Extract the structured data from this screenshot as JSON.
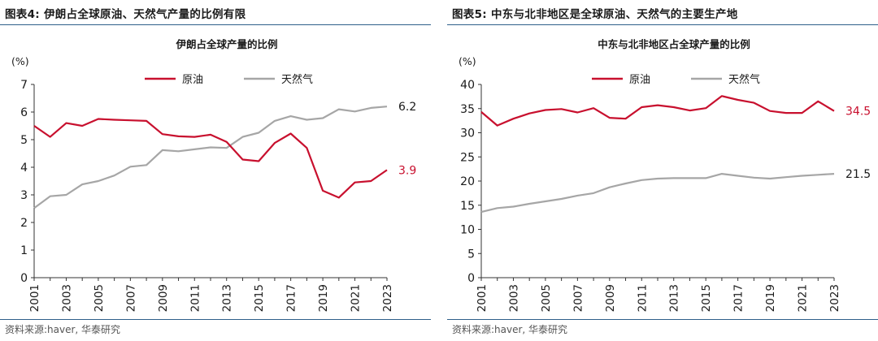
{
  "panels": [
    {
      "figure_title": "图表4:  伊朗占全球原油、天然气产量的比例有限",
      "source": "资料来源:haver, 华泰研究"
    },
    {
      "figure_title": "图表5:  中东与北非地区是全球原油、天然气的主要生产地",
      "source": "资料来源:haver, 华泰研究"
    }
  ],
  "colors": {
    "oil": "#c8102e",
    "gas": "#a6a6a6",
    "rule": "#2e5f8a"
  },
  "chart_data": [
    {
      "type": "line",
      "title": "伊朗占全球产量的比例",
      "ylabel": "(%)",
      "xlabel": "",
      "ylim": [
        0,
        7
      ],
      "yticks": [
        0,
        1,
        2,
        3,
        4,
        5,
        6,
        7
      ],
      "x": [
        2001,
        2002,
        2003,
        2004,
        2005,
        2006,
        2007,
        2008,
        2009,
        2010,
        2011,
        2012,
        2013,
        2014,
        2015,
        2016,
        2017,
        2018,
        2019,
        2020,
        2021,
        2022,
        2023
      ],
      "xticks": [
        "2001",
        "2003",
        "2005",
        "2007",
        "2009",
        "2011",
        "2013",
        "2015",
        "2017",
        "2019",
        "2021",
        "2023"
      ],
      "legend_position": "top-center",
      "grid": false,
      "series": [
        {
          "name": "原油",
          "color": "#c8102e",
          "end_label": "3.9",
          "values": [
            5.5,
            5.1,
            5.6,
            5.5,
            5.75,
            5.72,
            5.7,
            5.68,
            5.2,
            5.12,
            5.1,
            5.18,
            4.92,
            4.28,
            4.22,
            4.88,
            5.22,
            4.7,
            3.15,
            2.9,
            3.45,
            3.5,
            3.9
          ]
        },
        {
          "name": "天然气",
          "color": "#a6a6a6",
          "end_label": "6.2",
          "values": [
            2.52,
            2.95,
            3.0,
            3.38,
            3.5,
            3.7,
            4.02,
            4.08,
            4.62,
            4.58,
            4.65,
            4.72,
            4.7,
            5.1,
            5.25,
            5.68,
            5.85,
            5.72,
            5.78,
            6.1,
            6.02,
            6.15,
            6.2
          ]
        }
      ]
    },
    {
      "type": "line",
      "title": "中东与北非地区占全球产量的比例",
      "ylabel": "(%)",
      "xlabel": "",
      "ylim": [
        0,
        40
      ],
      "yticks": [
        0,
        5,
        10,
        15,
        20,
        25,
        30,
        35,
        40
      ],
      "x": [
        2001,
        2002,
        2003,
        2004,
        2005,
        2006,
        2007,
        2008,
        2009,
        2010,
        2011,
        2012,
        2013,
        2014,
        2015,
        2016,
        2017,
        2018,
        2019,
        2020,
        2021,
        2022,
        2023
      ],
      "xticks": [
        "2001",
        "2003",
        "2005",
        "2007",
        "2009",
        "2011",
        "2013",
        "2015",
        "2017",
        "2019",
        "2021",
        "2023"
      ],
      "legend_position": "top-center",
      "grid": false,
      "series": [
        {
          "name": "原油",
          "color": "#c8102e",
          "end_label": "34.5",
          "values": [
            34.3,
            31.5,
            32.9,
            34.0,
            34.7,
            34.9,
            34.2,
            35.1,
            33.1,
            32.9,
            35.3,
            35.7,
            35.3,
            34.6,
            35.1,
            37.6,
            36.8,
            36.2,
            34.5,
            34.1,
            34.1,
            36.5,
            34.5
          ]
        },
        {
          "name": "天然气",
          "color": "#a6a6a6",
          "end_label": "21.5",
          "values": [
            13.6,
            14.4,
            14.7,
            15.3,
            15.8,
            16.3,
            17.0,
            17.5,
            18.7,
            19.5,
            20.2,
            20.5,
            20.6,
            20.6,
            20.6,
            21.5,
            21.1,
            20.7,
            20.5,
            20.8,
            21.1,
            21.3,
            21.5
          ]
        }
      ]
    }
  ]
}
